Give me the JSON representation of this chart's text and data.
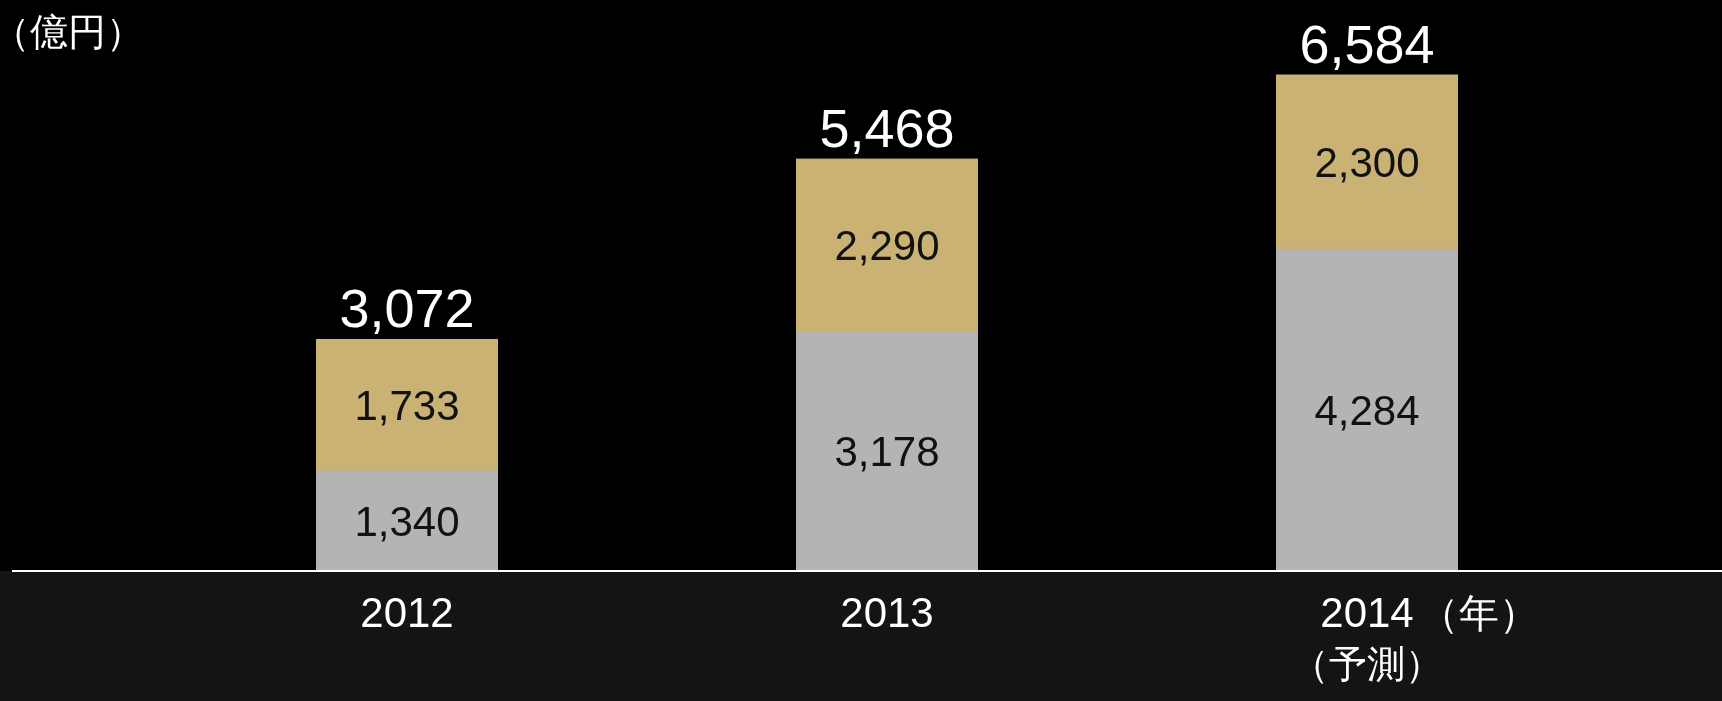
{
  "chart_data": {
    "type": "bar",
    "stacked": true,
    "ylabel": "（億円）",
    "xlabel": "（年）",
    "categories": [
      "2012",
      "2013",
      "2014"
    ],
    "series": [
      {
        "color": "#b4b4b4",
        "values": [
          1340,
          3178,
          4284
        ],
        "value_labels": [
          "1,340",
          "3,178",
          "4,284"
        ]
      },
      {
        "color": "#c9b273",
        "values": [
          1733,
          2290,
          2300
        ],
        "value_labels": [
          "1,733",
          "2,290",
          "2,300"
        ]
      }
    ],
    "totals": [
      "3,072",
      "5,468",
      "6,584"
    ],
    "annotations": [
      "（予測）"
    ]
  }
}
